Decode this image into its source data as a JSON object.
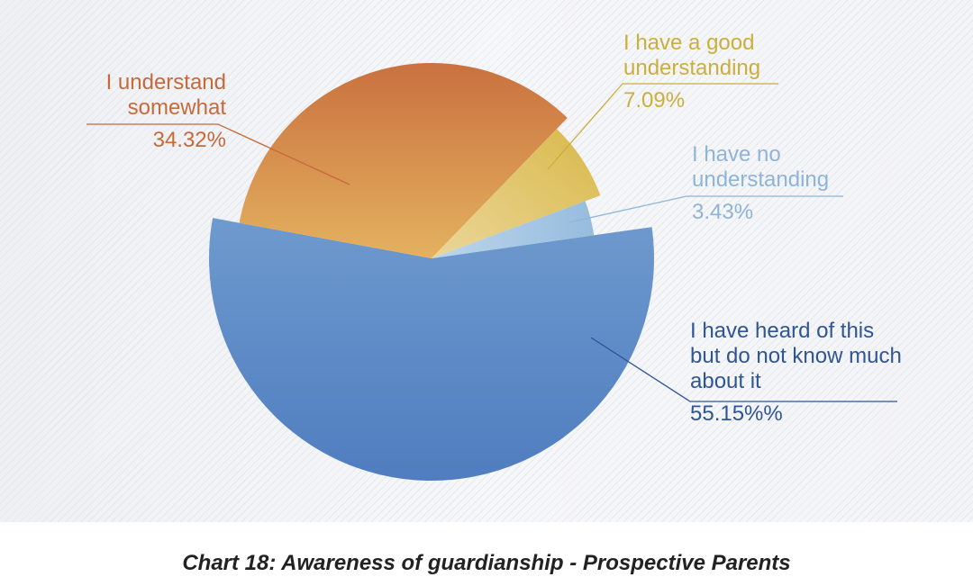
{
  "chart_data": {
    "type": "pie",
    "title": "Chart 18: Awareness of guardianship - Prospective Parents",
    "slices": [
      {
        "label": "I have heard of this but do not know much about it",
        "value": 55.15,
        "value_label": "55.15%%",
        "color": "#4f7dbf",
        "color_light": "#6e9ace"
      },
      {
        "label": "I understand somewhat",
        "value": 34.32,
        "value_label": "34.32%",
        "color": "#c9713f",
        "color_light": "#e4b15f"
      },
      {
        "label": "I have a good understanding",
        "value": 7.09,
        "value_label": "7.09%",
        "color": "#d9b94a",
        "color_light": "#ebd69a"
      },
      {
        "label": "I have no understanding",
        "value": 3.43,
        "value_label": "3.43%",
        "color": "#97bcde",
        "color_light": "#bcd6ec"
      }
    ],
    "label_colors": [
      "#2f5597",
      "#c8693a",
      "#ccae3c",
      "#8fb4d8"
    ]
  }
}
